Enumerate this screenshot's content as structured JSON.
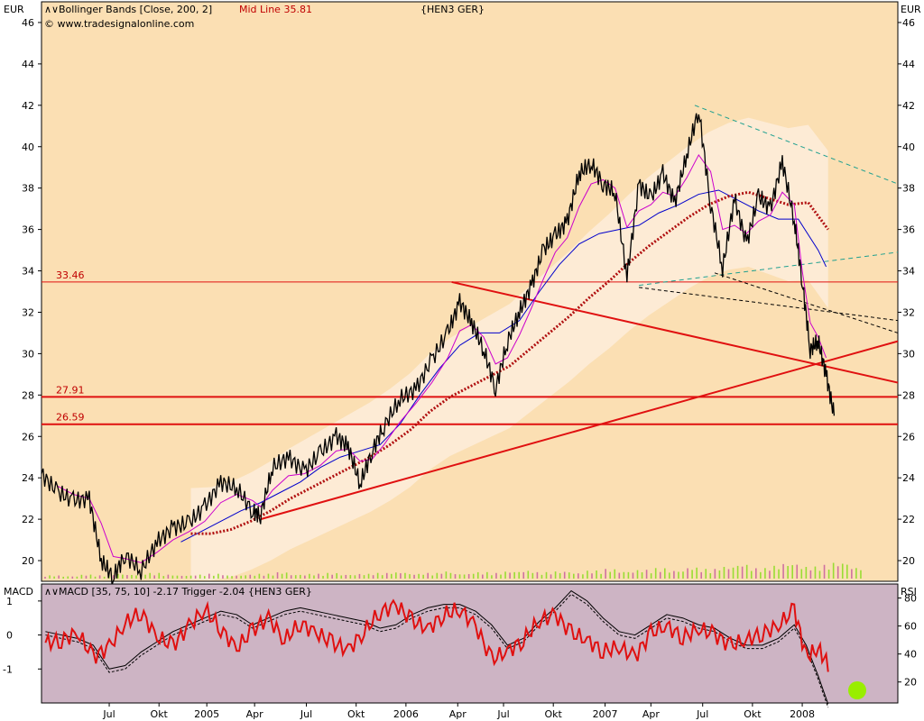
{
  "main_panel": {
    "currency_label": "EUR",
    "title_prefix": "Bollinger Bands [Close, 200, 2]",
    "title_midline": "Mid Line 35.81",
    "instrument": "{HEN3 GER}",
    "copyright": "© www.tradesignalonline.com",
    "colors": {
      "background": "#fbdfb3",
      "band_fill": "#fdecd8",
      "price": "#000000",
      "fast_ma": "#cc00cc",
      "slow_ma": "#0000cc",
      "midline": "#b01010",
      "level_line": "#e01010",
      "volume": "#99dd33",
      "teal": "#20a090"
    }
  },
  "macd_panel": {
    "left_label": "MACD",
    "title": "MACD [35, 75, 10] -2.17 Trigger -2.04 {HEN3 GER}",
    "right_label": "RSI",
    "colors": {
      "background": "#cdb4c4",
      "rsi": "#e01010",
      "macd": "#000000",
      "highlight": "#99ee00"
    }
  },
  "chart_data": [
    {
      "type": "line",
      "title": "Bollinger Bands [Close, 200, 2]",
      "ylabel": "EUR",
      "ylim": [
        19,
        47
      ],
      "yticks": [
        20,
        22,
        24,
        26,
        28,
        30,
        32,
        34,
        36,
        38,
        40,
        42,
        44,
        46
      ],
      "xlim": [
        2004.2,
        2008.5
      ],
      "xticks": [
        {
          "x": 2004.54,
          "label": "Jul"
        },
        {
          "x": 2004.79,
          "label": "Okt"
        },
        {
          "x": 2005.03,
          "label": "2005"
        },
        {
          "x": 2005.27,
          "label": "Apr"
        },
        {
          "x": 2005.53,
          "label": "Jul"
        },
        {
          "x": 2005.78,
          "label": "Okt"
        },
        {
          "x": 2006.03,
          "label": "2006"
        },
        {
          "x": 2006.29,
          "label": "Apr"
        },
        {
          "x": 2006.52,
          "label": "Jul"
        },
        {
          "x": 2006.77,
          "label": "Okt"
        },
        {
          "x": 2007.03,
          "label": "2007"
        },
        {
          "x": 2007.26,
          "label": "Apr"
        },
        {
          "x": 2007.52,
          "label": "Jul"
        },
        {
          "x": 2007.77,
          "label": "Okt"
        },
        {
          "x": 2008.02,
          "label": "2008"
        }
      ],
      "levels": [
        {
          "value": 33.46,
          "label": "33.46"
        },
        {
          "value": 27.91,
          "label": "27.91"
        },
        {
          "value": 26.59,
          "label": "26.59"
        }
      ],
      "series": [
        {
          "key": "price",
          "x": [
            2004.2,
            2004.28,
            2004.36,
            2004.44,
            2004.5,
            2004.56,
            2004.62,
            2004.7,
            2004.78,
            2004.86,
            2004.94,
            2005.02,
            2005.1,
            2005.18,
            2005.26,
            2005.3,
            2005.36,
            2005.44,
            2005.52,
            2005.6,
            2005.68,
            2005.74,
            2005.8,
            2005.86,
            2005.92,
            2006.0,
            2006.08,
            2006.16,
            2006.24,
            2006.3,
            2006.36,
            2006.42,
            2006.48,
            2006.54,
            2006.6,
            2006.66,
            2006.72,
            2006.78,
            2006.84,
            2006.9,
            2006.96,
            2007.02,
            2007.08,
            2007.14,
            2007.2,
            2007.26,
            2007.32,
            2007.38,
            2007.44,
            2007.5,
            2007.56,
            2007.62,
            2007.68,
            2007.74,
            2007.8,
            2007.86,
            2007.92,
            2007.98,
            2008.02,
            2008.06,
            2008.1,
            2008.14,
            2008.18
          ],
          "values": [
            24.2,
            23.3,
            22.9,
            23.0,
            20.0,
            19.2,
            20.3,
            19.5,
            20.9,
            21.6,
            21.8,
            22.6,
            23.8,
            23.5,
            22.4,
            22.2,
            24.5,
            25.0,
            24.3,
            25.2,
            26.0,
            25.5,
            23.7,
            25.3,
            26.5,
            27.8,
            28.3,
            29.7,
            31.0,
            32.5,
            31.5,
            30.2,
            28.3,
            30.6,
            32.0,
            33.3,
            35.0,
            35.7,
            36.4,
            38.7,
            39.2,
            38.2,
            37.8,
            33.7,
            38.2,
            37.5,
            38.7,
            37.3,
            39.6,
            41.8,
            37.2,
            34.1,
            37.5,
            35.3,
            37.6,
            37.0,
            39.3,
            36.4,
            33.5,
            30.2,
            30.6,
            29.0,
            27.0
          ]
        },
        {
          "key": "fast_ma",
          "x": [
            2004.28,
            2004.36,
            2004.44,
            2004.5,
            2004.56,
            2004.62,
            2004.7,
            2004.78,
            2004.86,
            2004.94,
            2005.02,
            2005.1,
            2005.18,
            2005.26,
            2005.3,
            2005.36,
            2005.44,
            2005.52,
            2005.6,
            2005.68,
            2005.74,
            2005.8,
            2005.86,
            2005.92,
            2006.0,
            2006.08,
            2006.16,
            2006.24,
            2006.3,
            2006.36,
            2006.42,
            2006.48,
            2006.54,
            2006.6,
            2006.66,
            2006.72,
            2006.78,
            2006.84,
            2006.9,
            2006.96,
            2007.02,
            2007.08,
            2007.14,
            2007.2,
            2007.26,
            2007.32,
            2007.38,
            2007.44,
            2007.5,
            2007.56,
            2007.62,
            2007.68,
            2007.74,
            2007.8,
            2007.86,
            2007.92,
            2007.98,
            2008.02,
            2008.06,
            2008.1,
            2008.14
          ],
          "values": [
            23.6,
            23.2,
            23.0,
            21.8,
            20.2,
            20.1,
            19.9,
            20.4,
            21.0,
            21.4,
            21.9,
            22.8,
            23.2,
            22.9,
            22.6,
            23.4,
            24.1,
            24.2,
            24.6,
            25.3,
            25.4,
            24.8,
            24.9,
            25.6,
            26.7,
            27.6,
            28.6,
            29.8,
            31.1,
            31.4,
            30.8,
            29.5,
            29.8,
            30.9,
            32.2,
            33.6,
            34.9,
            35.6,
            37.1,
            38.2,
            38.4,
            38.0,
            36.1,
            36.9,
            37.2,
            37.8,
            37.6,
            38.5,
            39.6,
            38.8,
            36.0,
            36.2,
            35.8,
            36.4,
            36.7,
            37.8,
            37.2,
            34.0,
            31.5,
            30.8,
            29.8
          ]
        },
        {
          "key": "slow_ma",
          "x": [
            2004.9,
            2005.0,
            2005.1,
            2005.2,
            2005.3,
            2005.4,
            2005.5,
            2005.6,
            2005.7,
            2005.8,
            2005.9,
            2006.0,
            2006.1,
            2006.2,
            2006.3,
            2006.4,
            2006.5,
            2006.6,
            2006.7,
            2006.8,
            2006.9,
            2007.0,
            2007.1,
            2007.2,
            2007.3,
            2007.4,
            2007.5,
            2007.6,
            2007.7,
            2007.8,
            2007.9,
            2008.0,
            2008.1,
            2008.14
          ],
          "values": [
            20.9,
            21.4,
            21.9,
            22.4,
            22.8,
            23.3,
            23.8,
            24.5,
            25.0,
            25.3,
            25.6,
            26.6,
            28.0,
            29.3,
            30.4,
            31.0,
            31.0,
            31.6,
            33.0,
            34.3,
            35.3,
            35.8,
            36.0,
            36.2,
            36.8,
            37.2,
            37.7,
            37.9,
            37.4,
            36.9,
            36.5,
            36.5,
            35.0,
            34.2
          ]
        },
        {
          "key": "midline",
          "x": [
            2004.95,
            2005.05,
            2005.15,
            2005.25,
            2005.35,
            2005.45,
            2005.55,
            2005.65,
            2005.75,
            2005.85,
            2005.95,
            2006.05,
            2006.15,
            2006.25,
            2006.35,
            2006.45,
            2006.55,
            2006.65,
            2006.75,
            2006.85,
            2006.95,
            2007.05,
            2007.15,
            2007.25,
            2007.35,
            2007.45,
            2007.55,
            2007.65,
            2007.75,
            2007.85,
            2007.95,
            2008.05,
            2008.15
          ],
          "values": [
            21.3,
            21.3,
            21.5,
            21.9,
            22.4,
            23.0,
            23.5,
            24.0,
            24.5,
            25.0,
            25.6,
            26.3,
            27.2,
            27.9,
            28.4,
            28.9,
            29.4,
            30.2,
            31.0,
            31.8,
            32.7,
            33.5,
            34.4,
            35.2,
            35.9,
            36.6,
            37.2,
            37.6,
            37.8,
            37.5,
            37.2,
            37.3,
            36.0
          ]
        },
        {
          "key": "volume",
          "values": [
            0.4,
            0.3,
            0.5,
            0.4,
            0.6,
            0.5,
            0.7,
            0.5,
            0.4,
            0.5,
            0.6,
            0.4,
            0.5,
            0.6,
            0.8,
            0.5,
            0.6,
            0.7,
            0.5,
            0.6,
            0.7,
            0.8,
            0.6,
            0.7,
            0.9,
            0.6,
            0.8,
            0.7,
            0.9,
            1.0,
            0.8,
            0.9,
            0.7,
            1.0,
            1.2,
            0.9,
            1.1,
            1.3,
            1.0,
            1.4,
            1.2,
            1.5,
            1.8,
            1.3,
            1.6,
            1.9,
            1.5,
            1.7,
            2.0,
            1.4
          ]
        }
      ]
    },
    {
      "type": "line",
      "title": "MACD [35, 75, 10] -2.17 Trigger -2.04 {HEN3 GER}",
      "ylabel": "MACD",
      "ylim": [
        -2,
        1.5
      ],
      "yticks": [
        -1,
        0,
        1
      ],
      "y2label": "RSI",
      "y2lim": [
        5,
        90
      ],
      "y2ticks": [
        20,
        40,
        60,
        80
      ],
      "series": [
        {
          "key": "rsi",
          "axis": "right",
          "x": [
            2004.22,
            2004.3,
            2004.38,
            2004.46,
            2004.54,
            2004.62,
            2004.7,
            2004.78,
            2004.86,
            2004.94,
            2005.02,
            2005.1,
            2005.18,
            2005.26,
            2005.34,
            2005.42,
            2005.5,
            2005.58,
            2005.66,
            2005.74,
            2005.82,
            2005.9,
            2005.98,
            2006.06,
            2006.14,
            2006.22,
            2006.3,
            2006.38,
            2006.46,
            2006.54,
            2006.62,
            2006.7,
            2006.78,
            2006.86,
            2006.94,
            2007.02,
            2007.1,
            2007.18,
            2007.26,
            2007.34,
            2007.42,
            2007.5,
            2007.58,
            2007.66,
            2007.74,
            2007.82,
            2007.9,
            2007.98,
            2008.04,
            2008.1,
            2008.16
          ],
          "values": [
            48,
            50,
            55,
            38,
            45,
            62,
            70,
            52,
            46,
            60,
            72,
            58,
            44,
            57,
            66,
            50,
            62,
            55,
            48,
            43,
            56,
            70,
            75,
            64,
            58,
            68,
            72,
            60,
            36,
            42,
            50,
            64,
            68,
            55,
            50,
            42,
            45,
            38,
            55,
            60,
            52,
            58,
            54,
            46,
            50,
            55,
            60,
            72,
            38,
            44,
            30
          ]
        },
        {
          "key": "macd",
          "axis": "left",
          "x": [
            2004.22,
            2004.3,
            2004.38,
            2004.46,
            2004.54,
            2004.62,
            2004.7,
            2004.78,
            2004.86,
            2004.94,
            2005.02,
            2005.1,
            2005.18,
            2005.26,
            2005.34,
            2005.42,
            2005.5,
            2005.58,
            2005.66,
            2005.74,
            2005.82,
            2005.9,
            2005.98,
            2006.06,
            2006.14,
            2006.22,
            2006.3,
            2006.38,
            2006.46,
            2006.54,
            2006.62,
            2006.7,
            2006.78,
            2006.86,
            2006.94,
            2007.02,
            2007.1,
            2007.18,
            2007.26,
            2007.34,
            2007.42,
            2007.5,
            2007.58,
            2007.66,
            2007.74,
            2007.82,
            2007.9,
            2007.98,
            2008.04,
            2008.1,
            2008.16
          ],
          "values": [
            0.1,
            0.0,
            -0.1,
            -0.3,
            -1.0,
            -0.9,
            -0.5,
            -0.2,
            0.1,
            0.3,
            0.5,
            0.7,
            0.6,
            0.3,
            0.5,
            0.7,
            0.8,
            0.7,
            0.6,
            0.5,
            0.4,
            0.2,
            0.3,
            0.6,
            0.8,
            0.9,
            0.9,
            0.7,
            0.3,
            -0.3,
            -0.1,
            0.4,
            0.8,
            1.3,
            1.0,
            0.5,
            0.1,
            0.0,
            0.3,
            0.6,
            0.5,
            0.3,
            0.2,
            -0.1,
            -0.3,
            -0.3,
            -0.1,
            0.3,
            -0.3,
            -1.2,
            -2.2
          ]
        }
      ]
    }
  ]
}
